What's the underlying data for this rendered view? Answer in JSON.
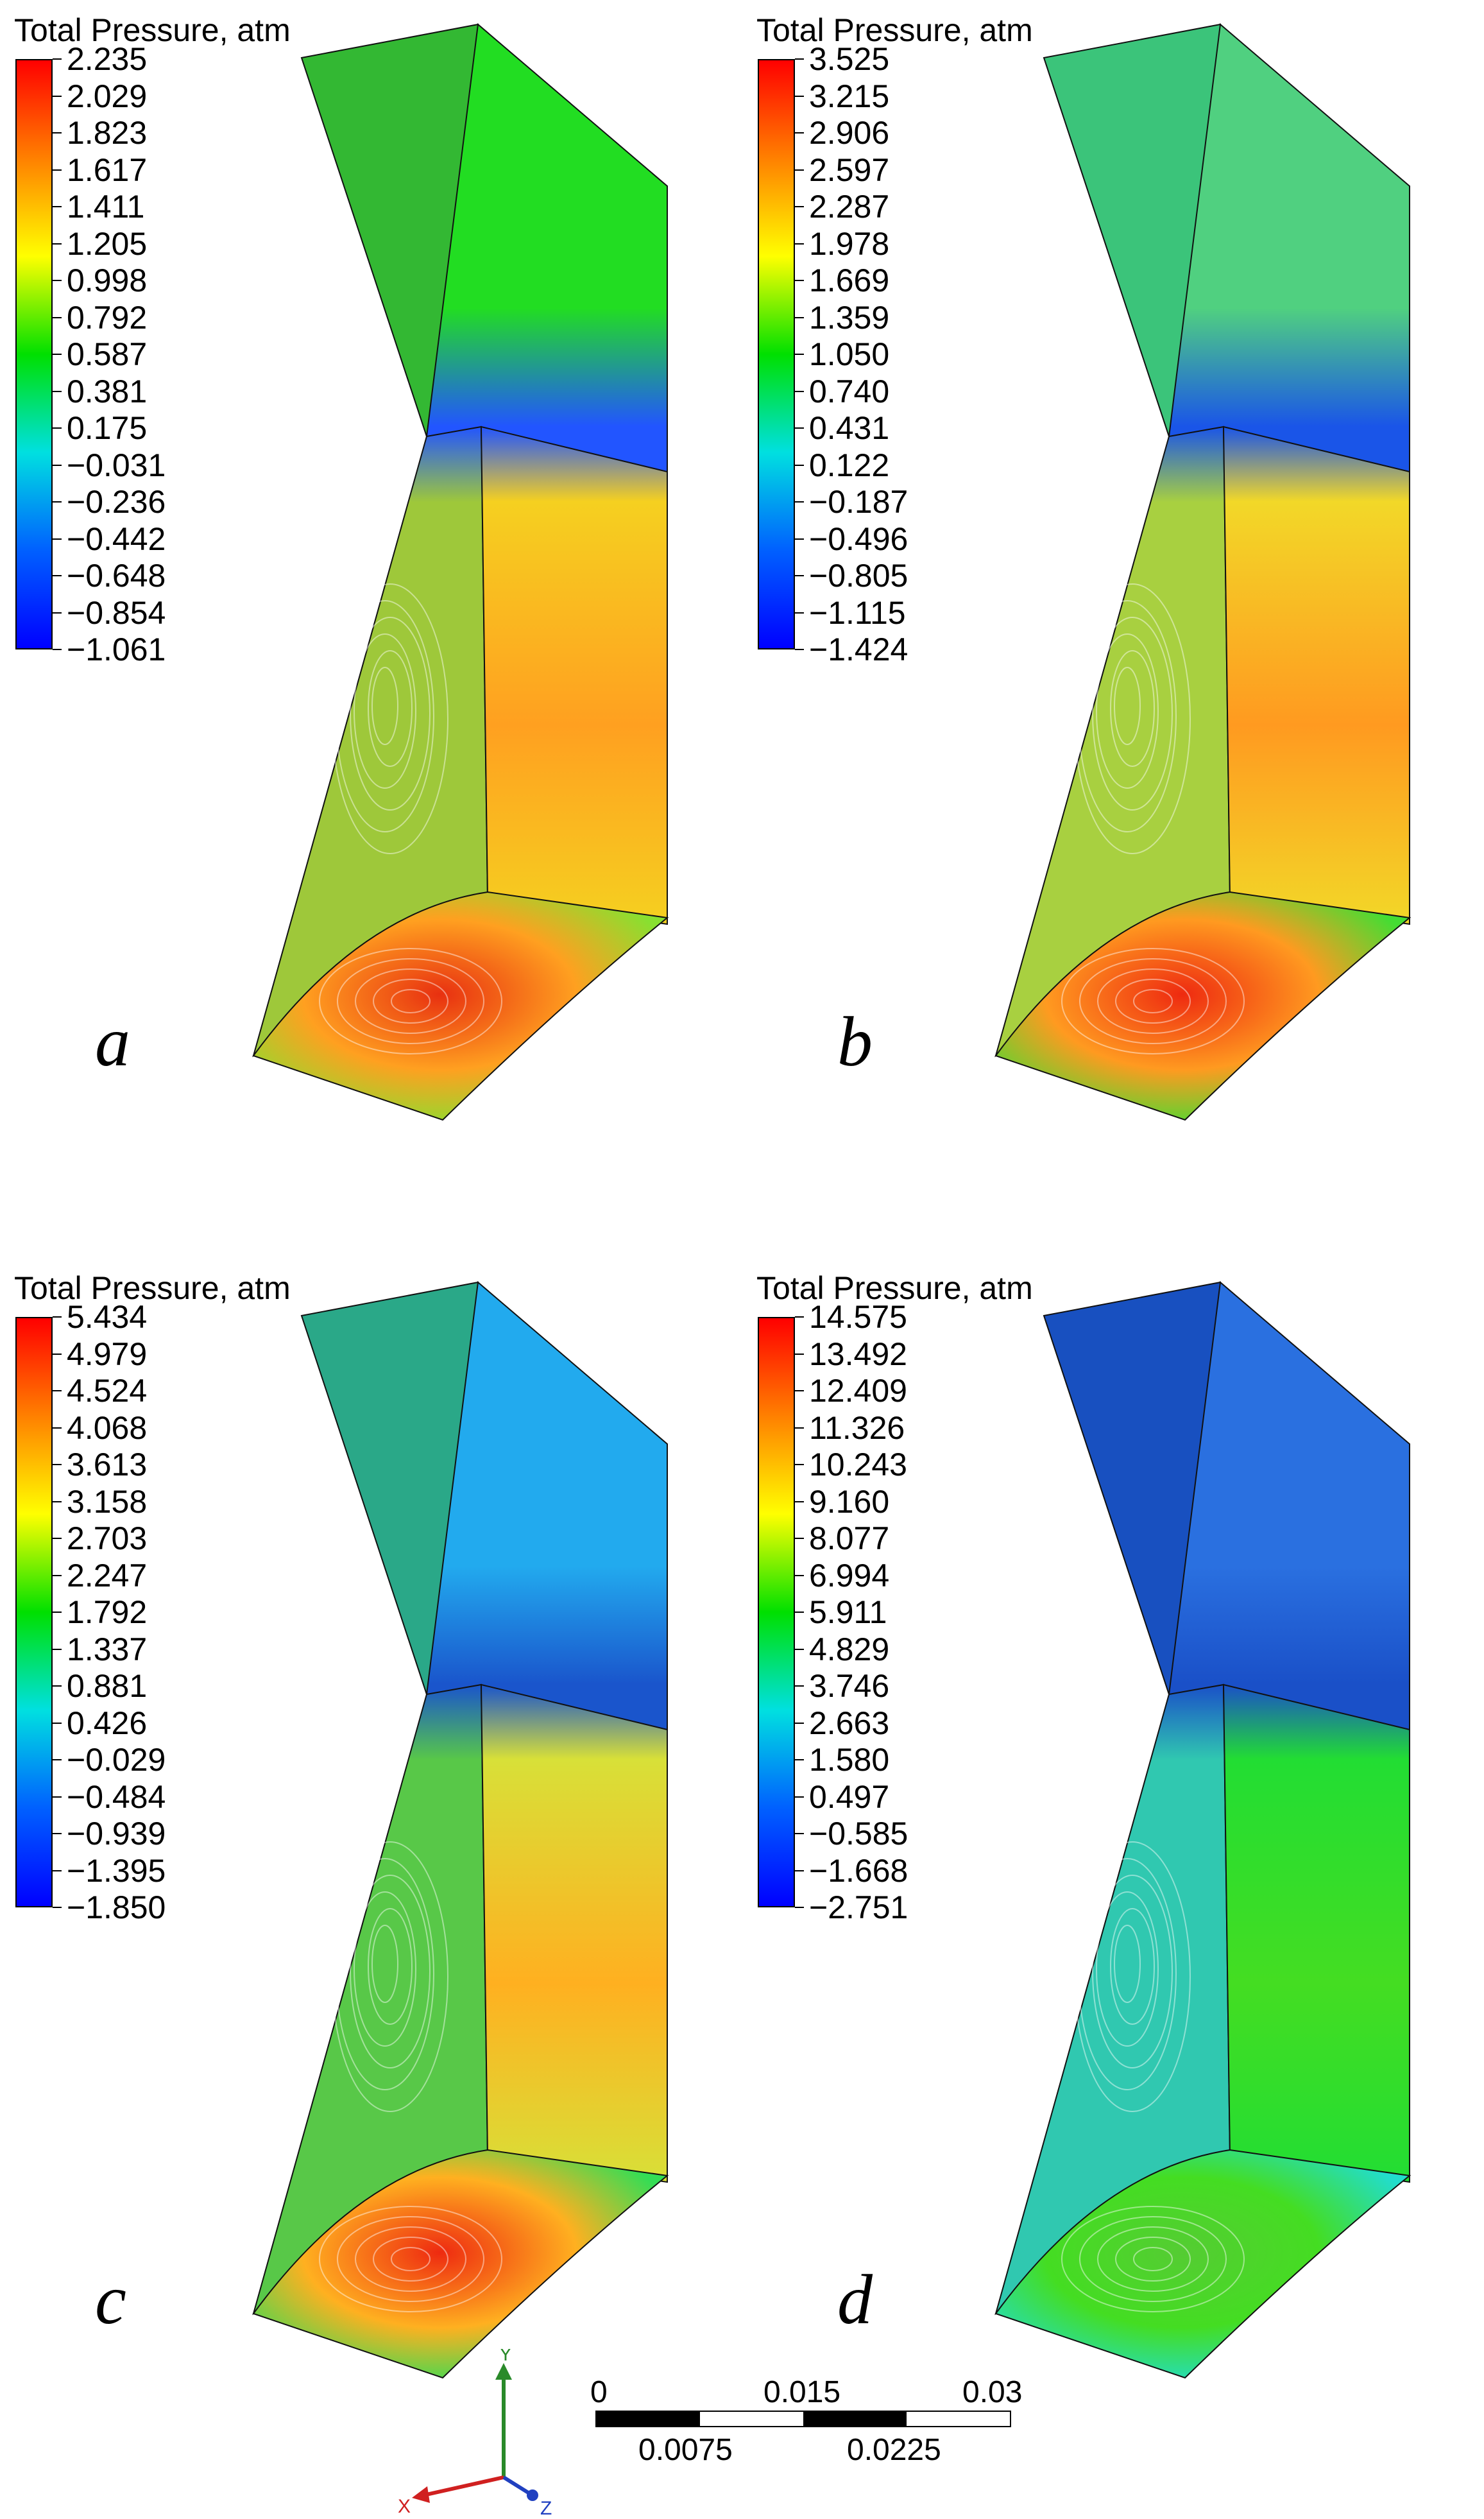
{
  "colormap": [
    "#ff0000",
    "#ff8000",
    "#ffff00",
    "#00e000",
    "#00e0e0",
    "#0060ff",
    "#0000ff"
  ],
  "panels": [
    {
      "id": "a",
      "label": "a",
      "legend_title": "Total Pressure, atm",
      "ticks": [
        "2.235",
        "2.029",
        "1.823",
        "1.617",
        "1.411",
        "1.205",
        "0.998",
        "0.792",
        "0.587",
        "0.381",
        "0.175",
        "−0.031",
        "−0.236",
        "−0.442",
        "−0.648",
        "−0.854",
        "−1.061"
      ],
      "colors": {
        "upper_left": "#33b833",
        "upper_right": "#22dd22",
        "band": "#2255ff",
        "lower_left": "#9ec83a",
        "lower_right": "#f5d020",
        "lower_right_hot": "#ffa020",
        "bottom": "#e83010",
        "bottom_edge": "#88e030"
      }
    },
    {
      "id": "b",
      "label": "b",
      "legend_title": "Total Pressure, atm",
      "ticks": [
        "3.525",
        "3.215",
        "2.906",
        "2.597",
        "2.287",
        "1.978",
        "1.669",
        "1.359",
        "1.050",
        "0.740",
        "0.431",
        "0.122",
        "−0.187",
        "−0.496",
        "−0.805",
        "−1.115",
        "−1.424"
      ],
      "colors": {
        "upper_left": "#3bc47a",
        "upper_right": "#50d080",
        "band": "#1a55e8",
        "lower_left": "#a8d040",
        "lower_right": "#f2d828",
        "lower_right_hot": "#ff9a20",
        "bottom": "#ee2a10",
        "bottom_edge": "#44dd33"
      }
    },
    {
      "id": "c",
      "label": "c",
      "legend_title": "Total Pressure, atm",
      "ticks": [
        "5.434",
        "4.979",
        "4.524",
        "4.068",
        "3.613",
        "3.158",
        "2.703",
        "2.247",
        "1.792",
        "1.337",
        "0.881",
        "0.426",
        "−0.029",
        "−0.484",
        "−0.939",
        "−1.395",
        "−1.850"
      ],
      "colors": {
        "upper_left": "#2aa888",
        "upper_right": "#22aaee",
        "band": "#1a55cc",
        "lower_left": "#58c848",
        "lower_right": "#d8e038",
        "lower_right_hot": "#ffb020",
        "bottom": "#ee2a10",
        "bottom_edge": "#33dd55"
      }
    },
    {
      "id": "d",
      "label": "d",
      "legend_title": "Total Pressure, atm",
      "ticks": [
        "14.575",
        "13.492",
        "12.409",
        "11.326",
        "10.243",
        "9.160",
        "8.077",
        "6.994",
        "5.911",
        "4.829",
        "3.746",
        "2.663",
        "1.580",
        "0.497",
        "−0.585",
        "−1.668",
        "−2.751"
      ],
      "colors": {
        "upper_left": "#1850c0",
        "upper_right": "#2a70e0",
        "band": "#1a50c8",
        "lower_left": "#30c8b0",
        "lower_right": "#22dd33",
        "lower_right_hot": "#44dd22",
        "bottom": "#55cc33",
        "bottom_edge": "#22ddcc"
      }
    }
  ],
  "scale_bar": {
    "top_labels": [
      "0",
      "0.015",
      "0.03"
    ],
    "bottom_labels": [
      "0.0075",
      "0.0225"
    ]
  },
  "axes": {
    "x_label": "X",
    "y_label": "Y",
    "z_label": "Z"
  }
}
